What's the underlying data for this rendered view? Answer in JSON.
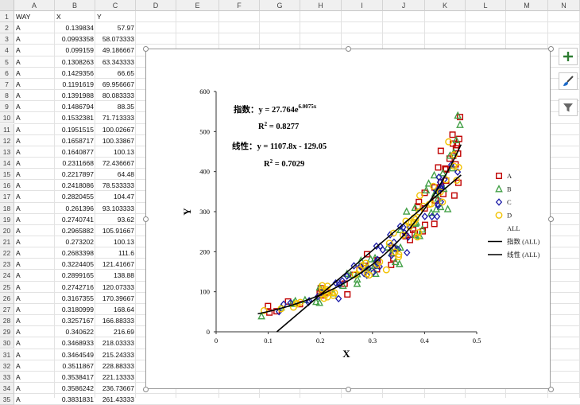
{
  "spreadsheet": {
    "columns": [
      "A",
      "B",
      "C",
      "D",
      "E",
      "F",
      "G",
      "H",
      "I",
      "J",
      "K",
      "L",
      "M",
      "N"
    ],
    "rows": [
      "1",
      "2",
      "3",
      "4",
      "5",
      "6",
      "7",
      "8",
      "9",
      "10",
      "11",
      "12",
      "13",
      "14",
      "15",
      "16",
      "17",
      "18",
      "19",
      "20",
      "21",
      "22",
      "23",
      "24",
      "25",
      "26",
      "27",
      "28",
      "29",
      "30",
      "31",
      "32",
      "33",
      "34",
      "35"
    ],
    "headers": [
      "WAY",
      "X",
      "Y"
    ],
    "data": [
      [
        "A",
        "0.139834",
        "57.97"
      ],
      [
        "A",
        "0.0993358",
        "58.073333"
      ],
      [
        "A",
        "0.099159",
        "49.186667"
      ],
      [
        "A",
        "0.1308263",
        "63.343333"
      ],
      [
        "A",
        "0.1429356",
        "66.65"
      ],
      [
        "A",
        "0.1191619",
        "69.956667"
      ],
      [
        "A",
        "0.1391988",
        "80.083333"
      ],
      [
        "A",
        "0.1486794",
        "88.35"
      ],
      [
        "A",
        "0.1532381",
        "71.713333"
      ],
      [
        "A",
        "0.1951515",
        "100.02667"
      ],
      [
        "A",
        "0.1658717",
        "100.33867"
      ],
      [
        "A",
        "0.1640877",
        "100.13"
      ],
      [
        "A",
        "0.2311668",
        "72.436667"
      ],
      [
        "A",
        "0.2217897",
        "64.48"
      ],
      [
        "A",
        "0.2418086",
        "78.533333"
      ],
      [
        "A",
        "0.2820455",
        "104.47"
      ],
      [
        "A",
        "0.261396",
        "93.103333"
      ],
      [
        "A",
        "0.2740741",
        "93.62"
      ],
      [
        "A",
        "0.2965882",
        "105.91667"
      ],
      [
        "A",
        "0.273202",
        "100.13"
      ],
      [
        "A",
        "0.2683398",
        "111.6"
      ],
      [
        "A",
        "0.3224405",
        "121.41667"
      ],
      [
        "A",
        "0.2899165",
        "138.88"
      ],
      [
        "A",
        "0.2742716",
        "120.07333"
      ],
      [
        "A",
        "0.3167355",
        "170.39667"
      ],
      [
        "A",
        "0.3180999",
        "168.64"
      ],
      [
        "A",
        "0.3257167",
        "166.88333"
      ],
      [
        "A",
        "0.340622",
        "216.69"
      ],
      [
        "A",
        "0.3468933",
        "218.03333"
      ],
      [
        "A",
        "0.3464549",
        "215.24333"
      ],
      [
        "A",
        "0.3511867",
        "228.88333"
      ],
      [
        "A",
        "0.3538417",
        "221.13333"
      ],
      [
        "A",
        "0.3586242",
        "236.73667"
      ],
      [
        "A",
        "0.3831831",
        "261.43333"
      ]
    ]
  },
  "side_buttons": [
    {
      "name": "add-chart-element-button",
      "icon": "plus-icon"
    },
    {
      "name": "chart-styles-button",
      "icon": "brush-icon"
    },
    {
      "name": "chart-filters-button",
      "icon": "filter-icon"
    }
  ],
  "chart_data": {
    "type": "scatter",
    "xlabel": "X",
    "ylabel": "Y",
    "xlim": [
      0,
      0.5
    ],
    "ylim": [
      0,
      600
    ],
    "xticks": [
      "0",
      "0.1",
      "0.2",
      "0.3",
      "0.4",
      "0.5"
    ],
    "yticks": [
      "0",
      "100",
      "200",
      "300",
      "400",
      "500",
      "600"
    ],
    "grid": false,
    "legend_position": "right",
    "annotations": {
      "exp_label": "指数：y = 27.764e",
      "exp_power": "6.0075x",
      "exp_r2": "R",
      "exp_r2_value": " = 0.8277",
      "lin_label": "线性：y = 1107.8x - 129.05",
      "lin_r2": "R",
      "lin_r2_value": " = 0.7029"
    },
    "series": [
      {
        "name": "A",
        "marker": "square",
        "color": "#c00000"
      },
      {
        "name": "B",
        "marker": "triangle",
        "color": "#43a047"
      },
      {
        "name": "C",
        "marker": "diamond",
        "color": "#1a1aa6"
      },
      {
        "name": "D",
        "marker": "circle",
        "color": "#f2c200"
      },
      {
        "name": "ALL",
        "marker": "none",
        "color": "#000000"
      }
    ],
    "trendlines": [
      {
        "name": "指数 (ALL)",
        "type": "exponential",
        "a": 27.764,
        "b": 6.0075,
        "color": "#000000"
      },
      {
        "name": "线性 (ALL)",
        "type": "linear",
        "slope": 1107.8,
        "intercept": -129.05,
        "color": "#000000"
      }
    ]
  }
}
